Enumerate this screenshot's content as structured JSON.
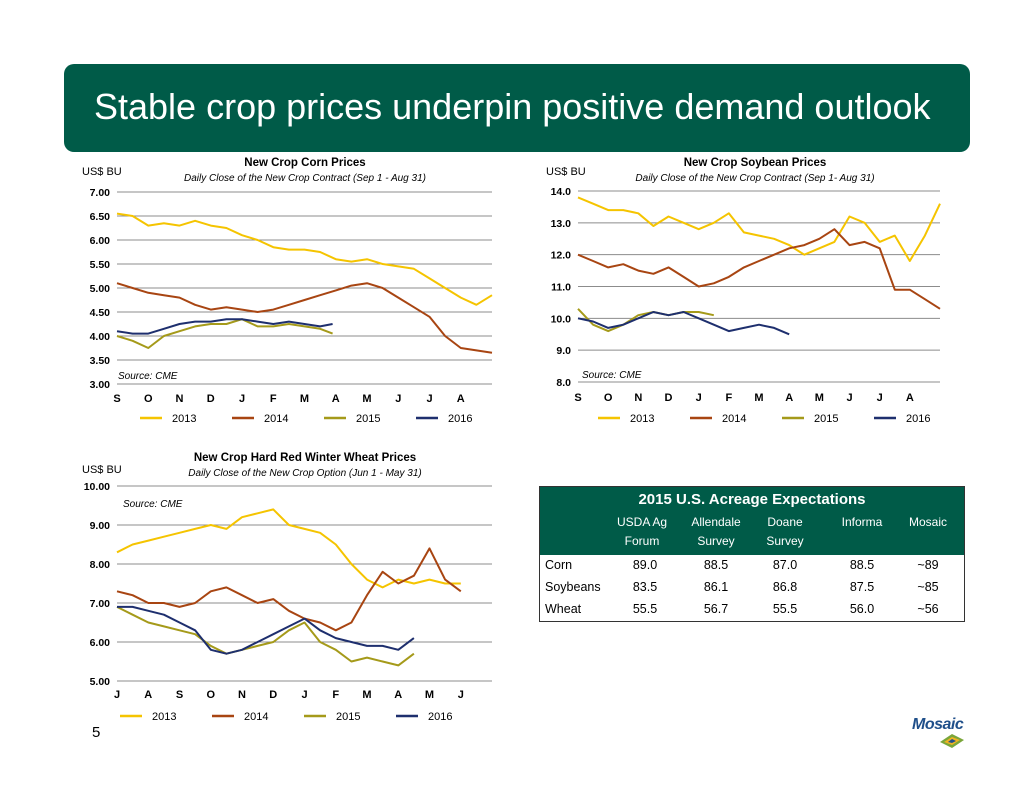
{
  "title": "Stable crop prices underpin positive demand outlook",
  "page_number": "5",
  "logo_text": "Mosaic",
  "colors": {
    "banner": "#005b48",
    "y2013": "#f5c400",
    "y2014": "#a84512",
    "y2015": "#a59a1a",
    "y2016": "#1e2f6e"
  },
  "chart_data": [
    {
      "id": "corn",
      "type": "line",
      "title": "New Crop Corn Prices",
      "subtitle": "Daily Close of the New Crop Contract (Sep 1 - Aug 31)",
      "ylabel": "US$ BU",
      "source": "Source: CME",
      "ylim": [
        3.0,
        7.0
      ],
      "y_ticks": [
        "3.00",
        "3.50",
        "4.00",
        "4.50",
        "5.00",
        "5.50",
        "6.00",
        "6.50",
        "7.00"
      ],
      "x_labels": [
        "S",
        "O",
        "N",
        "D",
        "J",
        "F",
        "M",
        "A",
        "M",
        "J",
        "J",
        "A"
      ],
      "grid": true,
      "legend": "bottom",
      "series": [
        {
          "name": "2013",
          "color": "#f5c400",
          "x": [
            0,
            0.5,
            1,
            1.5,
            2,
            2.5,
            3,
            3.5,
            4,
            4.5,
            5,
            5.5,
            6,
            6.5,
            7,
            7.5,
            8,
            8.5,
            9,
            9.5,
            10,
            10.5,
            11,
            11.5,
            12
          ],
          "values": [
            6.55,
            6.5,
            6.3,
            6.35,
            6.3,
            6.4,
            6.3,
            6.25,
            6.1,
            6.0,
            5.85,
            5.8,
            5.8,
            5.75,
            5.6,
            5.55,
            5.6,
            5.5,
            5.45,
            5.4,
            5.2,
            5.0,
            4.8,
            4.65,
            4.85
          ]
        },
        {
          "name": "2014",
          "color": "#a84512",
          "x": [
            0,
            0.5,
            1,
            1.5,
            2,
            2.5,
            3,
            3.5,
            4,
            4.5,
            5,
            5.5,
            6,
            6.5,
            7,
            7.5,
            8,
            8.5,
            9,
            9.5,
            10,
            10.5,
            11,
            11.5,
            12
          ],
          "values": [
            5.1,
            5.0,
            4.9,
            4.85,
            4.8,
            4.65,
            4.55,
            4.6,
            4.55,
            4.5,
            4.55,
            4.65,
            4.75,
            4.85,
            4.95,
            5.05,
            5.1,
            5.0,
            4.8,
            4.6,
            4.4,
            4.0,
            3.75,
            3.7,
            3.65
          ]
        },
        {
          "name": "2015",
          "color": "#a59a1a",
          "x": [
            0,
            0.5,
            1,
            1.5,
            2,
            2.5,
            3,
            3.5,
            4,
            4.5,
            5,
            5.5,
            6,
            6.5,
            6.9
          ],
          "values": [
            4.0,
            3.9,
            3.75,
            4.0,
            4.1,
            4.2,
            4.25,
            4.25,
            4.35,
            4.2,
            4.2,
            4.25,
            4.2,
            4.15,
            4.05
          ]
        },
        {
          "name": "2016",
          "color": "#1e2f6e",
          "x": [
            0,
            0.5,
            1,
            1.5,
            2,
            2.5,
            3,
            3.5,
            4,
            4.5,
            5,
            5.5,
            6,
            6.5,
            6.9
          ],
          "values": [
            4.1,
            4.05,
            4.05,
            4.15,
            4.25,
            4.3,
            4.3,
            4.35,
            4.35,
            4.3,
            4.25,
            4.3,
            4.25,
            4.2,
            4.25
          ]
        }
      ]
    },
    {
      "id": "soy",
      "type": "line",
      "title": "New Crop Soybean Prices",
      "subtitle": "Daily Close of the New Crop Contract (Sep 1- Aug 31)",
      "ylabel": "US$ BU",
      "source": "Source: CME",
      "ylim": [
        8.0,
        14.0
      ],
      "y_ticks": [
        "8.0",
        "9.0",
        "10.0",
        "11.0",
        "12.0",
        "13.0",
        "14.0"
      ],
      "x_labels": [
        "S",
        "O",
        "N",
        "D",
        "J",
        "F",
        "M",
        "A",
        "M",
        "J",
        "J",
        "A"
      ],
      "grid": true,
      "legend": "bottom",
      "series": [
        {
          "name": "2013",
          "color": "#f5c400",
          "x": [
            0,
            0.5,
            1,
            1.5,
            2,
            2.5,
            3,
            3.5,
            4,
            4.5,
            5,
            5.5,
            6,
            6.5,
            7,
            7.5,
            8,
            8.5,
            9,
            9.5,
            10,
            10.5,
            11,
            11.5,
            12
          ],
          "values": [
            13.8,
            13.6,
            13.4,
            13.4,
            13.3,
            12.9,
            13.2,
            13.0,
            12.8,
            13.0,
            13.3,
            12.7,
            12.6,
            12.5,
            12.3,
            12.0,
            12.2,
            12.4,
            13.2,
            13.0,
            12.4,
            12.6,
            11.8,
            12.6,
            13.6
          ]
        },
        {
          "name": "2014",
          "color": "#a84512",
          "x": [
            0,
            0.5,
            1,
            1.5,
            2,
            2.5,
            3,
            3.5,
            4,
            4.5,
            5,
            5.5,
            6,
            6.5,
            7,
            7.5,
            8,
            8.5,
            9,
            9.5,
            10,
            10.5,
            11,
            11.5,
            12
          ],
          "values": [
            12.0,
            11.8,
            11.6,
            11.7,
            11.5,
            11.4,
            11.6,
            11.3,
            11.0,
            11.1,
            11.3,
            11.6,
            11.8,
            12.0,
            12.2,
            12.3,
            12.5,
            12.8,
            12.3,
            12.4,
            12.2,
            10.9,
            10.9,
            10.6,
            10.3
          ]
        },
        {
          "name": "2015",
          "color": "#a59a1a",
          "x": [
            0,
            0.5,
            1,
            1.5,
            2,
            2.5,
            3,
            3.5,
            4,
            4.5
          ],
          "values": [
            10.3,
            9.8,
            9.6,
            9.8,
            10.1,
            10.2,
            10.1,
            10.2,
            10.2,
            10.1
          ]
        },
        {
          "name": "2016",
          "color": "#1e2f6e",
          "x": [
            0,
            0.5,
            1,
            1.5,
            2,
            2.5,
            3,
            3.5,
            4,
            4.5,
            5,
            5.5,
            6,
            6.5,
            7
          ],
          "values": [
            10.0,
            9.9,
            9.7,
            9.8,
            10.0,
            10.2,
            10.1,
            10.2,
            10.0,
            9.8,
            9.6,
            9.7,
            9.8,
            9.7,
            9.5
          ]
        }
      ]
    },
    {
      "id": "wheat",
      "type": "line",
      "title": "New Crop Hard Red Winter Wheat Prices",
      "subtitle": "Daily Close of the New Crop Option (Jun 1 - May 31)",
      "ylabel": "US$ BU",
      "source": "Source: CME",
      "ylim": [
        5.0,
        10.0
      ],
      "y_ticks": [
        "5.00",
        "6.00",
        "7.00",
        "8.00",
        "9.00",
        "10.00"
      ],
      "x_labels": [
        "J",
        "A",
        "S",
        "O",
        "N",
        "D",
        "J",
        "F",
        "M",
        "A",
        "M",
        "J"
      ],
      "grid": true,
      "legend": "bottom",
      "series": [
        {
          "name": "2013",
          "color": "#f5c400",
          "x": [
            0,
            0.5,
            1,
            1.5,
            2,
            2.5,
            3,
            3.5,
            4,
            4.5,
            5,
            5.5,
            6,
            6.5,
            7,
            7.5,
            8,
            8.5,
            9,
            9.5,
            10,
            10.5,
            11
          ],
          "values": [
            8.3,
            8.5,
            8.6,
            8.7,
            8.8,
            8.9,
            9.0,
            8.9,
            9.2,
            9.3,
            9.4,
            9.0,
            8.9,
            8.8,
            8.5,
            8.0,
            7.6,
            7.4,
            7.6,
            7.5,
            7.6,
            7.5,
            7.5
          ]
        },
        {
          "name": "2014",
          "color": "#a84512",
          "x": [
            0,
            0.5,
            1,
            1.5,
            2,
            2.5,
            3,
            3.5,
            4,
            4.5,
            5,
            5.5,
            6,
            6.5,
            7,
            7.5,
            8,
            8.5,
            9,
            9.5,
            10,
            10.5,
            11
          ],
          "values": [
            7.3,
            7.2,
            7.0,
            7.0,
            6.9,
            7.0,
            7.3,
            7.4,
            7.2,
            7.0,
            7.1,
            6.8,
            6.6,
            6.5,
            6.3,
            6.5,
            7.2,
            7.8,
            7.5,
            7.7,
            8.4,
            7.6,
            7.3
          ]
        },
        {
          "name": "2015",
          "color": "#a59a1a",
          "x": [
            0,
            0.5,
            1,
            1.5,
            2,
            2.5,
            3,
            3.5,
            4,
            4.5,
            5,
            5.5,
            6,
            6.5,
            7,
            7.5,
            8,
            8.5,
            9,
            9.5
          ],
          "values": [
            6.9,
            6.7,
            6.5,
            6.4,
            6.3,
            6.2,
            5.9,
            5.7,
            5.8,
            5.9,
            6.0,
            6.3,
            6.5,
            6.0,
            5.8,
            5.5,
            5.6,
            5.5,
            5.4,
            5.7
          ]
        },
        {
          "name": "2016",
          "color": "#1e2f6e",
          "x": [
            0,
            0.5,
            1,
            1.5,
            2,
            2.5,
            3,
            3.5,
            4,
            4.5,
            5,
            5.5,
            6,
            6.5,
            7,
            7.5,
            8,
            8.5,
            9,
            9.5
          ],
          "values": [
            6.9,
            6.9,
            6.8,
            6.7,
            6.5,
            6.3,
            5.8,
            5.7,
            5.8,
            6.0,
            6.2,
            6.4,
            6.6,
            6.3,
            6.1,
            6.0,
            5.9,
            5.9,
            5.8,
            6.1
          ]
        }
      ]
    }
  ],
  "acreage": {
    "title": "2015 U.S. Acreage Expectations",
    "headers": [
      {
        "l1": "USDA Ag",
        "l2": "Forum"
      },
      {
        "l1": "Allendale",
        "l2": "Survey"
      },
      {
        "l1": "Doane",
        "l2": "Survey"
      },
      {
        "l1": "",
        "l2": "Informa"
      },
      {
        "l1": "",
        "l2": "Mosaic"
      }
    ],
    "rows": [
      {
        "crop": "Corn",
        "values": [
          "89.0",
          "88.5",
          "87.0",
          "88.5",
          "~89"
        ]
      },
      {
        "crop": "Soybeans",
        "values": [
          "83.5",
          "86.1",
          "86.8",
          "87.5",
          "~85"
        ]
      },
      {
        "crop": "Wheat",
        "values": [
          "55.5",
          "56.7",
          "55.5",
          "56.0",
          "~56"
        ]
      }
    ]
  }
}
